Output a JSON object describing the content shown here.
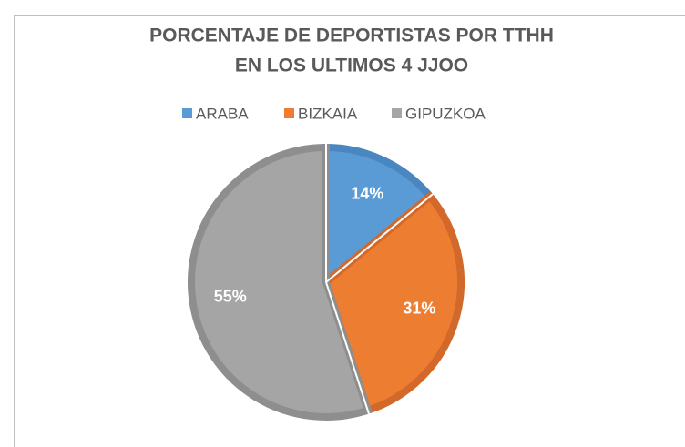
{
  "chart_data": {
    "type": "pie",
    "title": [
      "PORCENTAJE DE DEPORTISTAS POR TTHH",
      "EN LOS ULTIMOS 4 JJOO"
    ],
    "categories": [
      "ARABA",
      "BIZKAIA",
      "GIPUZKOA"
    ],
    "values": [
      14,
      31,
      55
    ],
    "value_labels": [
      "14%",
      "31%",
      "55%"
    ],
    "colors": [
      "#5b9bd5",
      "#ed7d31",
      "#a5a5a5"
    ],
    "border_colors": [
      "#4a86c0",
      "#d2692a",
      "#8e8e8e"
    ],
    "legend": "top"
  }
}
